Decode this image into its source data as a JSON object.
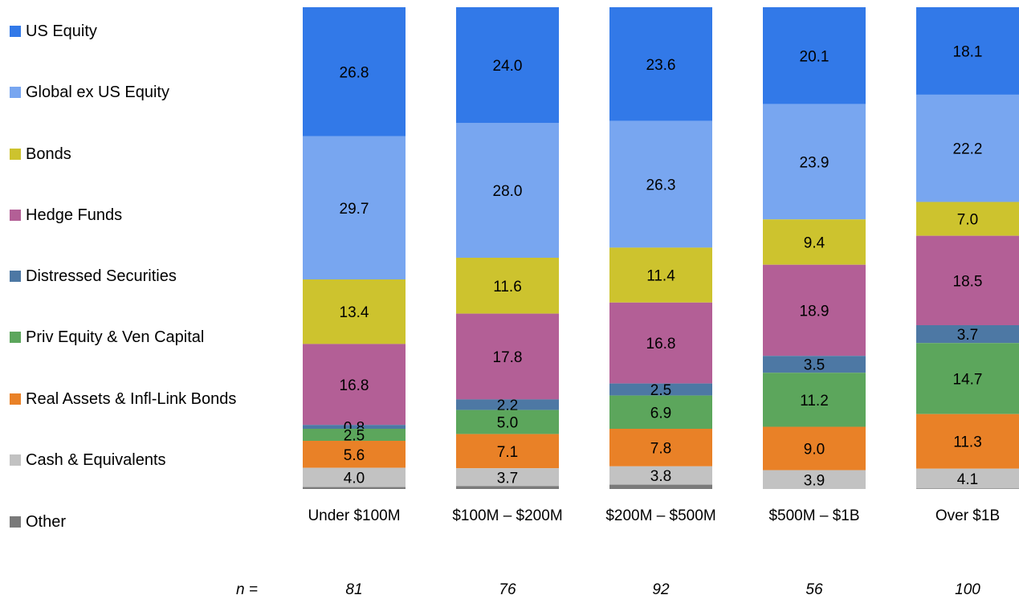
{
  "chart_data": {
    "type": "bar",
    "stacked": true,
    "categories": [
      "Under $100M",
      "$100M – $200M",
      "$200M – $500M",
      "$500M – $1B",
      "Over $1B"
    ],
    "series": [
      {
        "name": "US Equity",
        "color": "#3279e8",
        "values": [
          26.8,
          24.0,
          23.6,
          20.1,
          18.1
        ]
      },
      {
        "name": "Global ex US Equity",
        "color": "#78a6f0",
        "values": [
          29.7,
          28.0,
          26.3,
          23.9,
          22.2
        ]
      },
      {
        "name": "Bonds",
        "color": "#cdc32e",
        "values": [
          13.4,
          11.6,
          11.4,
          9.4,
          7.0
        ]
      },
      {
        "name": "Hedge Funds",
        "color": "#b35f96",
        "values": [
          16.8,
          17.8,
          16.8,
          18.9,
          18.5
        ]
      },
      {
        "name": "Distressed Securities",
        "color": "#4d78a4",
        "values": [
          0.8,
          2.2,
          2.5,
          3.5,
          3.7
        ]
      },
      {
        "name": "Priv Equity & Ven Capital",
        "color": "#5ca65c",
        "values": [
          2.5,
          5.0,
          6.9,
          11.2,
          14.7
        ]
      },
      {
        "name": "Real Assets & Infl-Link Bonds",
        "color": "#e98127",
        "values": [
          5.6,
          7.1,
          7.8,
          9.0,
          11.3
        ]
      },
      {
        "name": "Cash & Equivalents",
        "color": "#c2c2c2",
        "values": [
          4.0,
          3.7,
          3.8,
          3.9,
          4.1
        ]
      },
      {
        "name": "Other",
        "color": "#7a7a7a",
        "values": [
          0.4,
          0.6,
          0.9,
          0.0,
          0.1
        ]
      }
    ],
    "value_labels": [
      [
        "26.8",
        "24.0",
        "23.6",
        "20.1",
        "18.1"
      ],
      [
        "29.7",
        "28.0",
        "26.3",
        "23.9",
        "22.2"
      ],
      [
        "13.4",
        "11.6",
        "11.4",
        "9.4",
        "7.0"
      ],
      [
        "16.8",
        "17.8",
        "16.8",
        "18.9",
        "18.5"
      ],
      [
        "0.8",
        "2.2",
        "2.5",
        "3.5",
        "3.7"
      ],
      [
        "2.5",
        "5.0",
        "6.9",
        "11.2",
        "14.7"
      ],
      [
        "5.6",
        "7.1",
        "7.8",
        "9.0",
        "11.3"
      ],
      [
        "4.0",
        "3.7",
        "3.8",
        "3.9",
        "4.1"
      ],
      [
        "",
        "",
        "",
        "",
        ""
      ]
    ],
    "n_label": "n =",
    "n_values": [
      "81",
      "76",
      "92",
      "56",
      "100"
    ],
    "ylim": [
      0,
      100
    ],
    "legend_position": "left",
    "grid": false
  }
}
